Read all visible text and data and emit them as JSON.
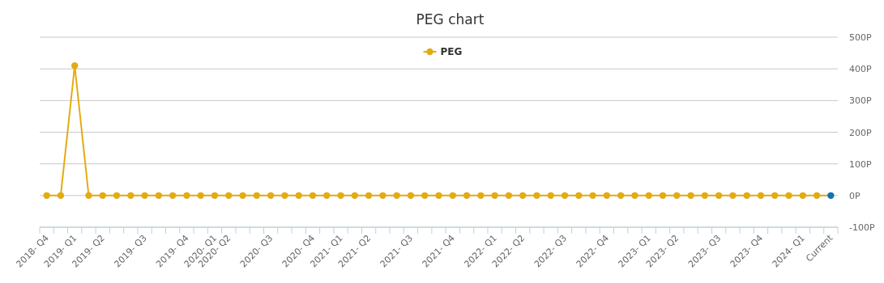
{
  "chart_data": {
    "type": "line",
    "title": "PEG chart",
    "categories": [
      "2018- Q4",
      null,
      "2019- Q1",
      null,
      "2019- Q2",
      null,
      null,
      "2019- Q3",
      null,
      null,
      "2019- Q4",
      null,
      "2020- Q1",
      "2020- Q2",
      null,
      null,
      "2020- Q3",
      null,
      null,
      "2020- Q4",
      null,
      "2021- Q1",
      null,
      "2021- Q2",
      null,
      null,
      "2021- Q3",
      null,
      null,
      "2021- Q4",
      null,
      null,
      "2022- Q1",
      null,
      "2022- Q2",
      null,
      null,
      "2022- Q3",
      null,
      null,
      "2022- Q4",
      null,
      null,
      "2023- Q1",
      null,
      "2023- Q2",
      null,
      null,
      "2023- Q3",
      null,
      null,
      "2023- Q4",
      null,
      null,
      "2024- Q1",
      null,
      "Current"
    ],
    "series": [
      {
        "name": "PEG",
        "color": "#e3ab12",
        "values": [
          0,
          0,
          410,
          0,
          0,
          0,
          0,
          0,
          0,
          0,
          0,
          0,
          0,
          0,
          0,
          0,
          0,
          0,
          0,
          0,
          0,
          0,
          0,
          0,
          0,
          0,
          0,
          0,
          0,
          0,
          0,
          0,
          0,
          0,
          0,
          0,
          0,
          0,
          0,
          0,
          0,
          0,
          0,
          0,
          0,
          0,
          0,
          0,
          0,
          0,
          0,
          0,
          0,
          0,
          0,
          0,
          0
        ],
        "colors": [
          "#e3ab12",
          "#e3ab12",
          "#e3ab12",
          "#e3ab12",
          "#e3ab12",
          "#e3ab12",
          "#e3ab12",
          "#e3ab12",
          "#e3ab12",
          "#e3ab12",
          "#e3ab12",
          "#e3ab12",
          "#e3ab12",
          "#e3ab12",
          "#e3ab12",
          "#e3ab12",
          "#e3ab12",
          "#e3ab12",
          "#e3ab12",
          "#e3ab12",
          "#e3ab12",
          "#e3ab12",
          "#e3ab12",
          "#e3ab12",
          "#e3ab12",
          "#e3ab12",
          "#e3ab12",
          "#e3ab12",
          "#e3ab12",
          "#e3ab12",
          "#e3ab12",
          "#e3ab12",
          "#e3ab12",
          "#e3ab12",
          "#e3ab12",
          "#e3ab12",
          "#e3ab12",
          "#e3ab12",
          "#e3ab12",
          "#e3ab12",
          "#e3ab12",
          "#e3ab12",
          "#e3ab12",
          "#e3ab12",
          "#e3ab12",
          "#e3ab12",
          "#e3ab12",
          "#e3ab12",
          "#e3ab12",
          "#e3ab12",
          "#e3ab12",
          "#e3ab12",
          "#e3ab12",
          "#e3ab12",
          "#e3ab12",
          "#e3ab12",
          "#1273b0"
        ]
      }
    ],
    "ylim": [
      -100,
      500
    ],
    "yticks": [
      {
        "value": -100,
        "label": "-100P"
      },
      {
        "value": 0,
        "label": "0P"
      },
      {
        "value": 100,
        "label": "100P"
      },
      {
        "value": 200,
        "label": "200P"
      },
      {
        "value": 300,
        "label": "300P"
      },
      {
        "value": 400,
        "label": "400P"
      },
      {
        "value": 500,
        "label": "500P"
      }
    ],
    "grid": "y",
    "legend": "top",
    "marker": "circle",
    "line_style": "solid"
  }
}
